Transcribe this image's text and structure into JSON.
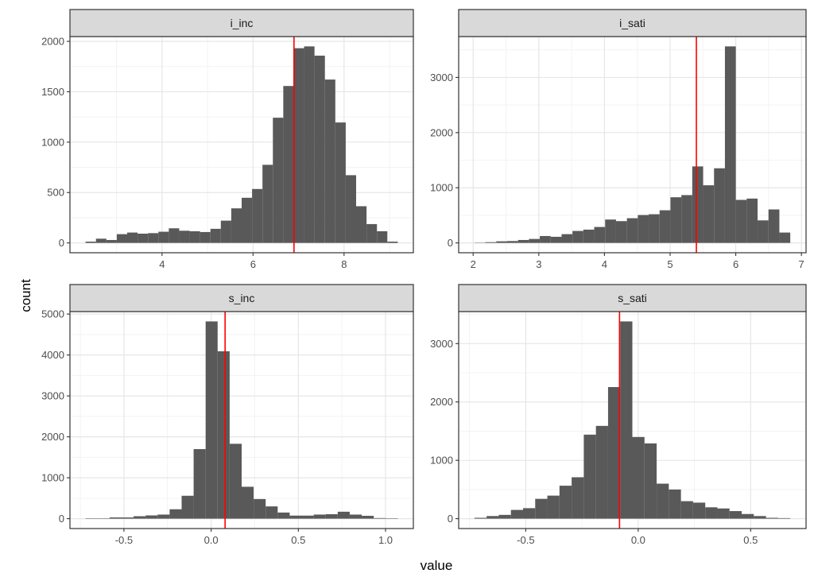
{
  "chart_data": {
    "type": "histogram-facets",
    "xlabel": "value",
    "ylabel": "count",
    "grid": true,
    "vline_color": "#ff0000",
    "bar_color": "#595959",
    "panels": [
      {
        "title": "i_inc",
        "xmin": 2.32,
        "xmax": 9.18,
        "counts": [
          13,
          42,
          29,
          87,
          103,
          92,
          97,
          111,
          145,
          121,
          116,
          108,
          140,
          221,
          343,
          448,
          535,
          775,
          1242,
          1557,
          1932,
          1950,
          1858,
          1621,
          1195,
          672,
          364,
          187,
          116,
          13
        ],
        "vline": 6.9,
        "xticks": [
          4,
          6,
          8
        ],
        "xtick_labels": [
          "4",
          "6",
          "8"
        ],
        "yticks": [
          0,
          500,
          1000,
          1500,
          2000
        ],
        "ytick_labels": [
          "0",
          "500",
          "1000",
          "1500",
          "2000"
        ]
      },
      {
        "title": "i_sati",
        "xmin": 2.02,
        "xmax": 6.83,
        "counts": [
          5,
          14,
          29,
          34,
          53,
          72,
          125,
          111,
          159,
          217,
          241,
          289,
          424,
          395,
          448,
          506,
          520,
          592,
          828,
          867,
          1387,
          1045,
          1353,
          3563,
          780,
          804,
          409,
          607,
          188
        ],
        "vline": 5.4,
        "xticks": [
          2,
          3,
          4,
          5,
          6,
          7
        ],
        "xtick_labels": [
          "2",
          "3",
          "4",
          "5",
          "6",
          "7"
        ],
        "yticks": [
          0,
          1000,
          2000,
          3000
        ],
        "ytick_labels": [
          "0",
          "1000",
          "2000",
          "3000"
        ]
      },
      {
        "title": "s_inc",
        "xmin": -0.72,
        "xmax": 1.07,
        "counts": [
          10,
          10,
          30,
          30,
          60,
          80,
          100,
          230,
          560,
          1700,
          4820,
          4090,
          1830,
          780,
          480,
          300,
          150,
          75,
          75,
          100,
          110,
          170,
          100,
          70,
          15,
          10
        ],
        "vline": 0.08,
        "xticks": [
          -0.5,
          0,
          0.5,
          1
        ],
        "xtick_labels": [
          "-0.5",
          "0.0",
          "0.5",
          "1.0"
        ],
        "yticks": [
          0,
          1000,
          2000,
          3000,
          4000,
          5000
        ],
        "ytick_labels": [
          "0",
          "1000",
          "2000",
          "3000",
          "4000",
          "5000"
        ]
      },
      {
        "title": "s_sati",
        "xmin": -0.728,
        "xmax": 0.676,
        "counts": [
          15,
          45,
          65,
          150,
          180,
          340,
          395,
          565,
          710,
          1440,
          1590,
          2255,
          3380,
          1400,
          1290,
          600,
          500,
          300,
          275,
          195,
          175,
          130,
          80,
          45,
          15,
          10
        ],
        "vline": -0.083,
        "xticks": [
          -0.5,
          0,
          0.5
        ],
        "xtick_labels": [
          "-0.5",
          "0.0",
          "0.5"
        ],
        "yticks": [
          0,
          1000,
          2000,
          3000
        ],
        "ytick_labels": [
          "0",
          "1000",
          "2000",
          "3000"
        ]
      }
    ]
  }
}
